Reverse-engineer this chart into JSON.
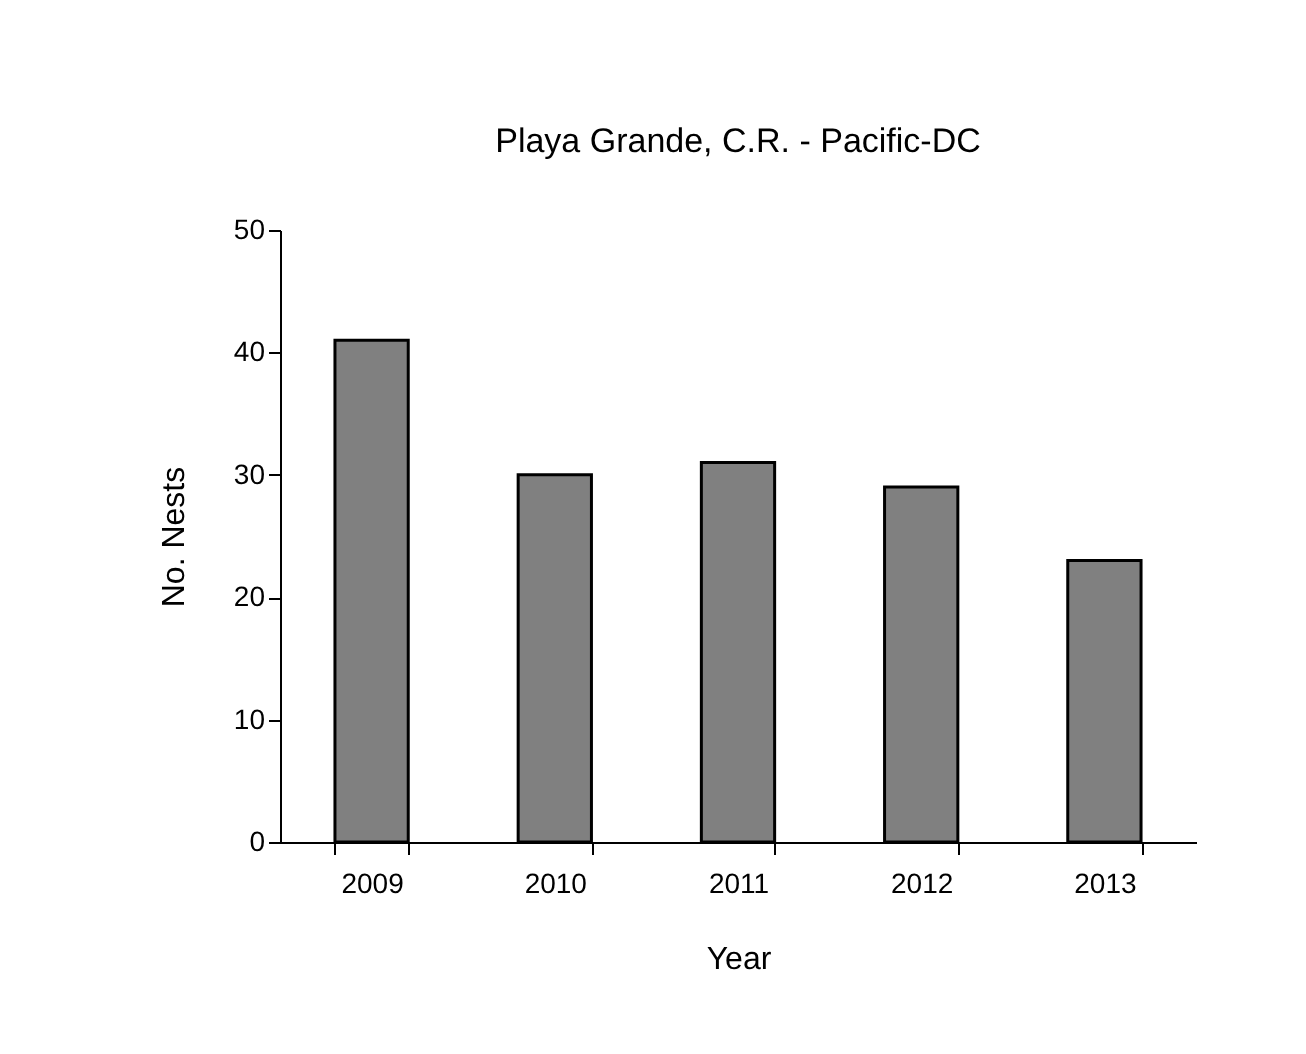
{
  "chart_data": {
    "type": "bar",
    "title": "Playa Grande, C.R. - Pacific-DC",
    "xlabel": "Year",
    "ylabel": "No. Nests",
    "categories": [
      "2009",
      "2010",
      "2011",
      "2012",
      "2013"
    ],
    "values": [
      41,
      30,
      31,
      29,
      23
    ],
    "color": "#808080",
    "ylim": [
      0,
      50
    ],
    "yticks": [
      0,
      10,
      20,
      30,
      40,
      50
    ],
    "grid": false
  }
}
